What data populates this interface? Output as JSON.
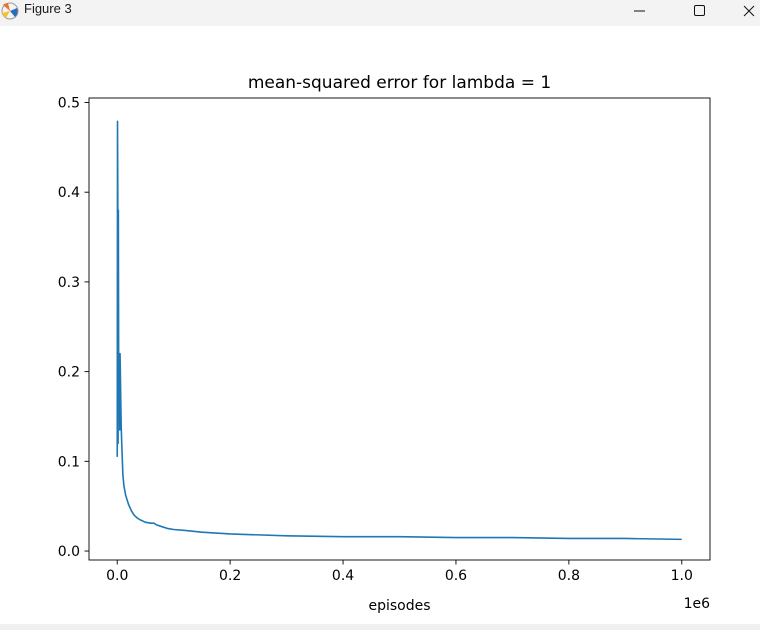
{
  "window": {
    "title": "Figure 3",
    "icons": {
      "app": "matplotlib-logo-icon",
      "minimize": "minimize-icon",
      "maximize": "maximize-icon",
      "close": "close-icon"
    }
  },
  "chart_data": {
    "type": "line",
    "title": "mean-squared error for lambda = 1",
    "xlabel": "episodes",
    "ylabel": "",
    "x_offset_label": "1e6",
    "xlim": [
      -0.05,
      1.05
    ],
    "ylim": [
      -0.01,
      0.505
    ],
    "xticks": [
      0.0,
      0.2,
      0.4,
      0.6,
      0.8,
      1.0
    ],
    "xtick_labels": [
      "0.0",
      "0.2",
      "0.4",
      "0.6",
      "0.8",
      "1.0"
    ],
    "yticks": [
      0.0,
      0.1,
      0.2,
      0.3,
      0.4,
      0.5
    ],
    "ytick_labels": [
      "0.0",
      "0.1",
      "0.2",
      "0.3",
      "0.4",
      "0.5"
    ],
    "grid": false,
    "legend": "none",
    "series": [
      {
        "color": "#1f77b4",
        "x": [
          0.0,
          0.0005,
          0.001,
          0.0015,
          0.002,
          0.0025,
          0.003,
          0.0035,
          0.004,
          0.0045,
          0.005,
          0.006,
          0.007,
          0.008,
          0.01,
          0.012,
          0.015,
          0.02,
          0.025,
          0.03,
          0.035,
          0.04,
          0.05,
          0.06,
          0.065,
          0.07,
          0.08,
          0.09,
          0.1,
          0.12,
          0.15,
          0.2,
          0.25,
          0.3,
          0.4,
          0.5,
          0.6,
          0.7,
          0.8,
          0.9,
          1.0
        ],
        "y": [
          0.105,
          0.479,
          0.4,
          0.12,
          0.38,
          0.22,
          0.15,
          0.205,
          0.18,
          0.135,
          0.22,
          0.18,
          0.14,
          0.12,
          0.085,
          0.072,
          0.062,
          0.052,
          0.045,
          0.04,
          0.037,
          0.035,
          0.032,
          0.031,
          0.031,
          0.029,
          0.027,
          0.025,
          0.024,
          0.023,
          0.021,
          0.019,
          0.018,
          0.017,
          0.016,
          0.016,
          0.015,
          0.015,
          0.014,
          0.014,
          0.013
        ]
      }
    ]
  }
}
